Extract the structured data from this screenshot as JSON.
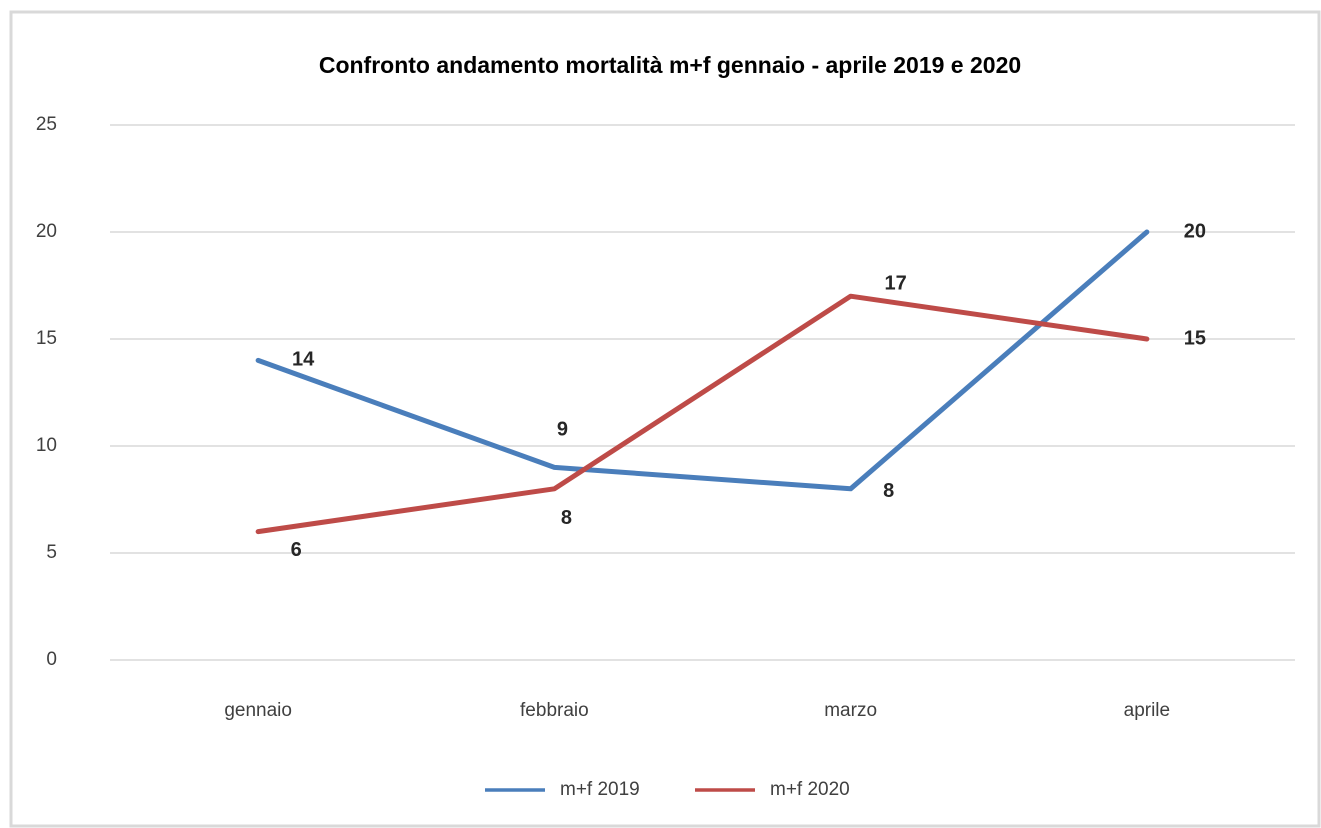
{
  "chart_data": {
    "type": "line",
    "title": "Confronto andamento mortalità m+f  gennaio - aprile 2019 e 2020",
    "categories": [
      "gennaio",
      "febbraio",
      "marzo",
      "aprile"
    ],
    "series": [
      {
        "name": "m+f 2019",
        "color": "#4a7ebb",
        "values": [
          14,
          9,
          8,
          20
        ]
      },
      {
        "name": "m+f 2020",
        "color": "#be4b48",
        "values": [
          6,
          8,
          17,
          15
        ]
      }
    ],
    "ylim": [
      0,
      25
    ],
    "yticks": [
      0,
      5,
      10,
      15,
      20,
      25
    ],
    "grid": true,
    "legend": "bottom"
  }
}
